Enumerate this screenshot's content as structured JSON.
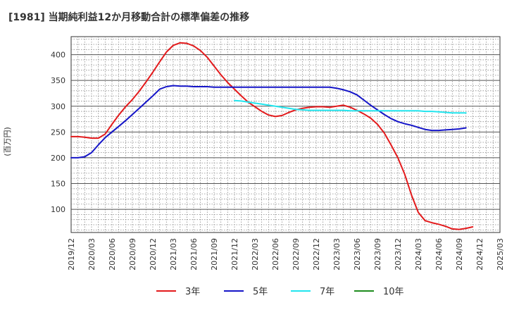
{
  "chart_data": {
    "type": "line",
    "title": "[1981]  当期純利益12か月移動合計の標準偏差の推移",
    "ylabel": "(百万円)",
    "xlabel": "",
    "xlim": [
      "2019-12",
      "2025-03"
    ],
    "ylim": [
      55,
      435
    ],
    "yticks": [
      100,
      150,
      200,
      250,
      300,
      350,
      400
    ],
    "xticks": [
      "2019/12",
      "2020/03",
      "2020/06",
      "2020/09",
      "2020/12",
      "2021/03",
      "2021/06",
      "2021/09",
      "2021/12",
      "2022/03",
      "2022/06",
      "2022/09",
      "2022/12",
      "2023/03",
      "2023/06",
      "2023/09",
      "2023/12",
      "2024/03",
      "2024/06",
      "2024/09",
      "2024/12",
      "2025/03"
    ],
    "grid": true,
    "legend_position": "bottom",
    "series": [
      {
        "name": "3年",
        "color": "#e31a1c",
        "points": [
          [
            "2019-12",
            241
          ],
          [
            "2020-01",
            241
          ],
          [
            "2020-02",
            240
          ],
          [
            "2020-03",
            238
          ],
          [
            "2020-04",
            238
          ],
          [
            "2020-05",
            246
          ],
          [
            "2020-06",
            265
          ],
          [
            "2020-07",
            283
          ],
          [
            "2020-08",
            299
          ],
          [
            "2020-09",
            313
          ],
          [
            "2020-10",
            329
          ],
          [
            "2020-11",
            347
          ],
          [
            "2020-12",
            366
          ],
          [
            "2021-01",
            386
          ],
          [
            "2021-02",
            405
          ],
          [
            "2021-03",
            418
          ],
          [
            "2021-04",
            423
          ],
          [
            "2021-05",
            422
          ],
          [
            "2021-06",
            417
          ],
          [
            "2021-07",
            408
          ],
          [
            "2021-08",
            395
          ],
          [
            "2021-09",
            378
          ],
          [
            "2021-10",
            361
          ],
          [
            "2021-11",
            346
          ],
          [
            "2021-12",
            333
          ],
          [
            "2022-01",
            320
          ],
          [
            "2022-02",
            308
          ],
          [
            "2022-03",
            299
          ],
          [
            "2022-04",
            290
          ],
          [
            "2022-05",
            283
          ],
          [
            "2022-06",
            280
          ],
          [
            "2022-07",
            282
          ],
          [
            "2022-08",
            288
          ],
          [
            "2022-09",
            293
          ],
          [
            "2022-10",
            296
          ],
          [
            "2022-11",
            298
          ],
          [
            "2022-12",
            299
          ],
          [
            "2023-01",
            299
          ],
          [
            "2023-02",
            298
          ],
          [
            "2023-03",
            300
          ],
          [
            "2023-04",
            302
          ],
          [
            "2023-05",
            298
          ],
          [
            "2023-06",
            292
          ],
          [
            "2023-07",
            285
          ],
          [
            "2023-08",
            277
          ],
          [
            "2023-09",
            265
          ],
          [
            "2023-10",
            248
          ],
          [
            "2023-11",
            225
          ],
          [
            "2023-12",
            200
          ],
          [
            "2024-01",
            168
          ],
          [
            "2024-02",
            128
          ],
          [
            "2024-03",
            94
          ],
          [
            "2024-04",
            78
          ],
          [
            "2024-05",
            74
          ],
          [
            "2024-06",
            71
          ],
          [
            "2024-07",
            67
          ],
          [
            "2024-08",
            62
          ],
          [
            "2024-09",
            61
          ],
          [
            "2024-10",
            63
          ],
          [
            "2024-11",
            66
          ]
        ]
      },
      {
        "name": "5年",
        "color": "#1515c8",
        "points": [
          [
            "2019-12",
            200
          ],
          [
            "2020-01",
            200
          ],
          [
            "2020-02",
            202
          ],
          [
            "2020-03",
            210
          ],
          [
            "2020-04",
            225
          ],
          [
            "2020-05",
            239
          ],
          [
            "2020-06",
            250
          ],
          [
            "2020-07",
            261
          ],
          [
            "2020-08",
            272
          ],
          [
            "2020-09",
            284
          ],
          [
            "2020-10",
            296
          ],
          [
            "2020-11",
            308
          ],
          [
            "2020-12",
            320
          ],
          [
            "2021-01",
            333
          ],
          [
            "2021-02",
            338
          ],
          [
            "2021-03",
            340
          ],
          [
            "2021-04",
            339
          ],
          [
            "2021-05",
            339
          ],
          [
            "2021-06",
            338
          ],
          [
            "2021-07",
            338
          ],
          [
            "2021-08",
            338
          ],
          [
            "2021-09",
            337
          ],
          [
            "2021-10",
            337
          ],
          [
            "2021-11",
            337
          ],
          [
            "2021-12",
            337
          ],
          [
            "2022-01",
            337
          ],
          [
            "2022-02",
            337
          ],
          [
            "2022-03",
            337
          ],
          [
            "2022-04",
            337
          ],
          [
            "2022-05",
            337
          ],
          [
            "2022-06",
            337
          ],
          [
            "2022-07",
            337
          ],
          [
            "2022-08",
            337
          ],
          [
            "2022-09",
            337
          ],
          [
            "2022-10",
            337
          ],
          [
            "2022-11",
            337
          ],
          [
            "2022-12",
            337
          ],
          [
            "2023-01",
            337
          ],
          [
            "2023-02",
            337
          ],
          [
            "2023-03",
            335
          ],
          [
            "2023-04",
            332
          ],
          [
            "2023-05",
            328
          ],
          [
            "2023-06",
            322
          ],
          [
            "2023-07",
            312
          ],
          [
            "2023-08",
            302
          ],
          [
            "2023-09",
            293
          ],
          [
            "2023-10",
            284
          ],
          [
            "2023-11",
            276
          ],
          [
            "2023-12",
            270
          ],
          [
            "2024-01",
            266
          ],
          [
            "2024-02",
            263
          ],
          [
            "2024-03",
            259
          ],
          [
            "2024-04",
            255
          ],
          [
            "2024-05",
            253
          ],
          [
            "2024-06",
            253
          ],
          [
            "2024-07",
            254
          ],
          [
            "2024-08",
            255
          ],
          [
            "2024-09",
            256
          ],
          [
            "2024-10",
            258
          ]
        ]
      },
      {
        "name": "7年",
        "color": "#22e5ee",
        "points": [
          [
            "2021-12",
            311
          ],
          [
            "2022-01",
            310
          ],
          [
            "2022-02",
            308
          ],
          [
            "2022-03",
            306
          ],
          [
            "2022-04",
            304
          ],
          [
            "2022-05",
            302
          ],
          [
            "2022-06",
            300
          ],
          [
            "2022-07",
            298
          ],
          [
            "2022-08",
            296
          ],
          [
            "2022-09",
            294
          ],
          [
            "2022-10",
            293
          ],
          [
            "2022-11",
            292
          ],
          [
            "2022-12",
            292
          ],
          [
            "2023-01",
            292
          ],
          [
            "2023-02",
            292
          ],
          [
            "2023-03",
            292
          ],
          [
            "2023-04",
            292
          ],
          [
            "2023-05",
            291
          ],
          [
            "2023-06",
            291
          ],
          [
            "2023-07",
            291
          ],
          [
            "2023-08",
            291
          ],
          [
            "2023-09",
            291
          ],
          [
            "2023-10",
            291
          ],
          [
            "2023-11",
            291
          ],
          [
            "2023-12",
            291
          ],
          [
            "2024-01",
            291
          ],
          [
            "2024-02",
            291
          ],
          [
            "2024-03",
            291
          ],
          [
            "2024-04",
            290
          ],
          [
            "2024-05",
            290
          ],
          [
            "2024-06",
            289
          ],
          [
            "2024-07",
            288
          ],
          [
            "2024-08",
            287
          ],
          [
            "2024-09",
            287
          ],
          [
            "2024-10",
            287
          ]
        ]
      },
      {
        "name": "10年",
        "color": "#1e8c1e",
        "points": []
      }
    ]
  }
}
